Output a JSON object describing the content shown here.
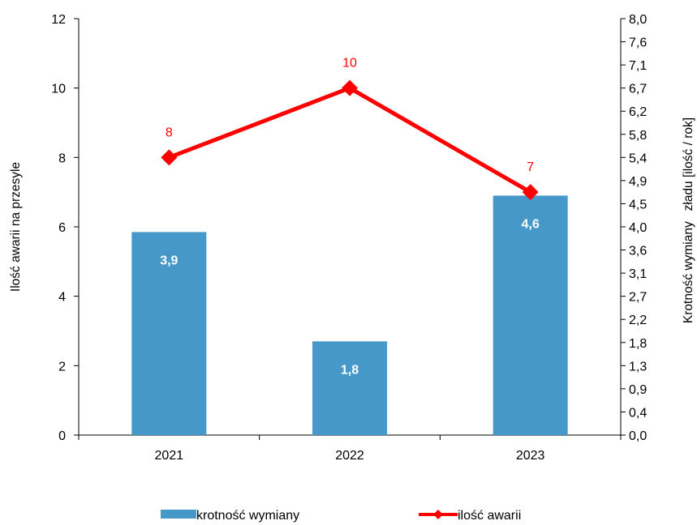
{
  "chart_data": {
    "type": "bar+line",
    "categories": [
      "2021",
      "2022",
      "2023"
    ],
    "left_axis": {
      "label": "Ilość awarii na przesyle",
      "ylim": [
        0,
        12
      ],
      "ticks": [
        "0",
        "2",
        "4",
        "6",
        "8",
        "10",
        "12"
      ]
    },
    "right_axis": {
      "label": "Krotność wymiany   zładu [ilość / rok]",
      "ylim": [
        0,
        8
      ],
      "ticks": [
        "0,0",
        "0,4",
        "0,9",
        "1,3",
        "1,8",
        "2,2",
        "2,7",
        "3,1",
        "3,6",
        "4,0",
        "4,5",
        "4,9",
        "5,4",
        "5,8",
        "6,2",
        "6,7",
        "7,1",
        "7,6",
        "8,0"
      ]
    },
    "series": [
      {
        "name": "krotność wymiany",
        "type": "bar",
        "axis": "right",
        "values": [
          3.9,
          1.8,
          4.6
        ],
        "labels": [
          "3,9",
          "1,8",
          "4,6"
        ],
        "color": "#4698c8"
      },
      {
        "name": "ilość awarii",
        "type": "line",
        "axis": "left",
        "values": [
          8,
          10,
          7
        ],
        "labels": [
          "8",
          "10",
          "7"
        ],
        "color": "#ff0000"
      }
    ],
    "grid": false,
    "legend": "bottom"
  }
}
